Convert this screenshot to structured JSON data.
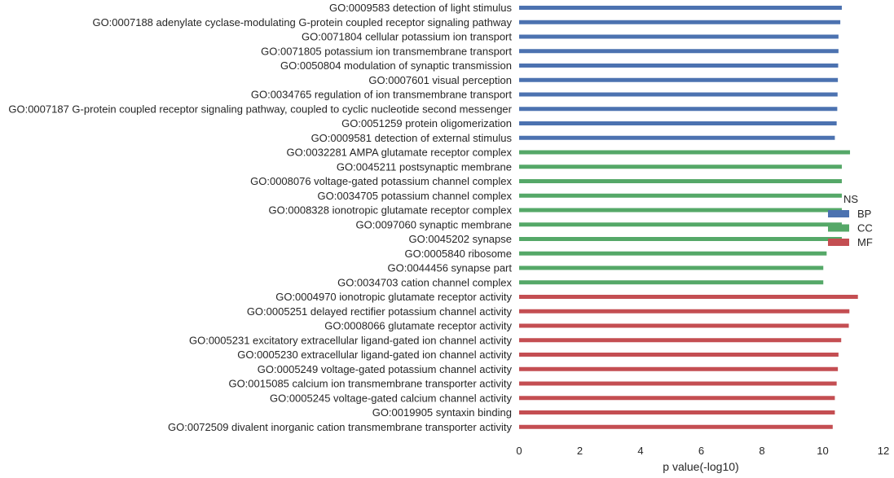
{
  "chart_data": {
    "type": "bar",
    "orientation": "horizontal",
    "xlabel": "p value(-log10)",
    "xlim": [
      0,
      12
    ],
    "xticks": [
      0,
      2,
      4,
      6,
      8,
      10,
      12
    ],
    "grid": false,
    "legend": {
      "title": "NS",
      "position": "right",
      "entries": [
        "BP",
        "CC",
        "MF"
      ]
    },
    "colors": {
      "BP": "#4c72b0",
      "CC": "#55a868",
      "MF": "#c44e52"
    },
    "categories": [
      "GO:0009583 detection of light stimulus",
      "GO:0007188 adenylate cyclase-modulating G-protein coupled receptor signaling pathway",
      "GO:0071804 cellular potassium ion transport",
      "GO:0071805 potassium ion transmembrane transport",
      "GO:0050804 modulation of synaptic transmission",
      "GO:0007601 visual perception",
      "GO:0034765 regulation of ion transmembrane transport",
      "GO:0007187 G-protein coupled receptor signaling pathway, coupled to cyclic nucleotide second messenger",
      "GO:0051259 protein oligomerization",
      "GO:0009581 detection of external stimulus",
      "GO:0032281 AMPA glutamate receptor complex",
      "GO:0045211 postsynaptic membrane",
      "GO:0008076 voltage-gated potassium channel complex",
      "GO:0034705 potassium channel complex",
      "GO:0008328 ionotropic glutamate receptor complex",
      "GO:0097060 synaptic membrane",
      "GO:0045202 synapse",
      "GO:0005840 ribosome",
      "GO:0044456 synapse part",
      "GO:0034703 cation channel complex",
      "GO:0004970 ionotropic glutamate receptor activity",
      "GO:0005251 delayed rectifier potassium channel activity",
      "GO:0008066 glutamate receptor activity",
      "GO:0005231 excitatory extracellular ligand-gated ion channel activity",
      "GO:0005230 extracellular ligand-gated ion channel activity",
      "GO:0005249 voltage-gated potassium channel activity",
      "GO:0015085 calcium ion transmembrane transporter activity",
      "GO:0005245 voltage-gated calcium channel activity",
      "GO:0019905 syntaxin binding",
      "GO:0072509 divalent inorganic cation transmembrane transporter activity"
    ],
    "values": [
      10.63,
      10.58,
      10.52,
      10.52,
      10.51,
      10.5,
      10.49,
      10.48,
      10.46,
      10.4,
      10.9,
      10.63,
      10.63,
      10.63,
      10.63,
      10.63,
      10.63,
      10.13,
      10.02,
      10.02,
      11.16,
      10.88,
      10.86,
      10.61,
      10.52,
      10.5,
      10.46,
      10.4,
      10.4,
      10.33
    ],
    "groups": [
      "BP",
      "BP",
      "BP",
      "BP",
      "BP",
      "BP",
      "BP",
      "BP",
      "BP",
      "BP",
      "CC",
      "CC",
      "CC",
      "CC",
      "CC",
      "CC",
      "CC",
      "CC",
      "CC",
      "CC",
      "MF",
      "MF",
      "MF",
      "MF",
      "MF",
      "MF",
      "MF",
      "MF",
      "MF",
      "MF"
    ]
  }
}
